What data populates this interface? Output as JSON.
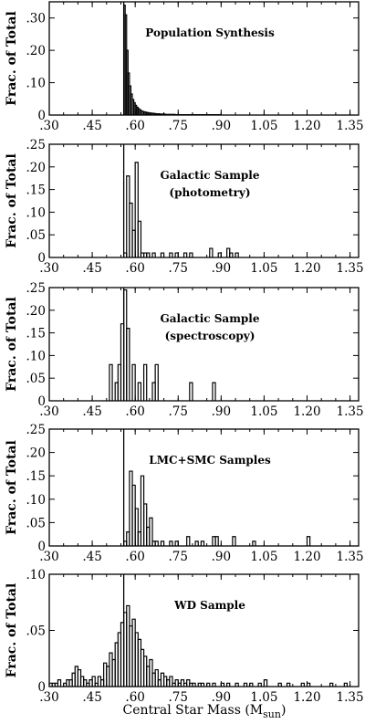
{
  "figure": {
    "xlabel_main": "Central Star Mass (M",
    "xlabel_sub": "sun",
    "xlabel_close": ")"
  },
  "chart_data": [
    {
      "type": "bar",
      "title_lines": [
        "Population Synthesis"
      ],
      "ylabel": "Frac. of Total",
      "xlim": [
        0.3,
        1.38
      ],
      "ylim": [
        0,
        0.35
      ],
      "xticks": [
        ".30",
        ".45",
        ".60",
        ".75",
        ".90",
        "1.05",
        "1.20",
        "1.35"
      ],
      "yticks": [
        {
          "v": 0,
          "l": "0"
        },
        {
          "v": 0.1,
          "l": ".10"
        },
        {
          "v": 0.2,
          "l": ".20"
        },
        {
          "v": 0.3,
          "l": ".30"
        }
      ],
      "marker_x": 0.56,
      "bin_width": 0.005,
      "bins": [
        [
          0.56,
          0.34
        ],
        [
          0.565,
          0.31
        ],
        [
          0.57,
          0.2
        ],
        [
          0.575,
          0.13
        ],
        [
          0.58,
          0.09
        ],
        [
          0.585,
          0.065
        ],
        [
          0.59,
          0.048
        ],
        [
          0.595,
          0.038
        ],
        [
          0.6,
          0.03
        ],
        [
          0.605,
          0.024
        ],
        [
          0.61,
          0.02
        ],
        [
          0.615,
          0.016
        ],
        [
          0.62,
          0.013
        ],
        [
          0.625,
          0.011
        ],
        [
          0.63,
          0.01
        ],
        [
          0.635,
          0.009
        ],
        [
          0.64,
          0.008
        ],
        [
          0.645,
          0.007
        ],
        [
          0.65,
          0.006
        ],
        [
          0.655,
          0.006
        ],
        [
          0.66,
          0.005
        ],
        [
          0.665,
          0.005
        ],
        [
          0.67,
          0.004
        ],
        [
          0.675,
          0.004
        ],
        [
          0.68,
          0.004
        ],
        [
          0.685,
          0.003
        ],
        [
          0.69,
          0.003
        ],
        [
          0.695,
          0.003
        ],
        [
          0.7,
          0.003
        ],
        [
          0.705,
          0.002
        ],
        [
          0.71,
          0.002
        ],
        [
          0.715,
          0.002
        ],
        [
          0.72,
          0.002
        ],
        [
          0.725,
          0.002
        ],
        [
          0.73,
          0.002
        ],
        [
          0.735,
          0.002
        ],
        [
          0.74,
          0.001
        ],
        [
          0.745,
          0.001
        ],
        [
          0.75,
          0.001
        ],
        [
          0.755,
          0.001
        ],
        [
          0.76,
          0.001
        ],
        [
          0.765,
          0.001
        ],
        [
          0.77,
          0.001
        ],
        [
          0.775,
          0.001
        ],
        [
          0.78,
          0.001
        ],
        [
          0.785,
          0.001
        ],
        [
          0.79,
          0.001
        ],
        [
          0.795,
          0.001
        ],
        [
          0.8,
          0.001
        ],
        [
          0.805,
          0.001
        ],
        [
          0.81,
          0.001
        ],
        [
          0.815,
          0.001
        ],
        [
          0.82,
          0.001
        ],
        [
          0.825,
          0.001
        ],
        [
          0.83,
          0.001
        ],
        [
          0.835,
          0.001
        ],
        [
          0.84,
          0.001
        ],
        [
          0.845,
          0.001
        ],
        [
          0.85,
          0.001
        ],
        [
          0.855,
          0.001
        ],
        [
          0.86,
          0.001
        ],
        [
          0.865,
          0.001
        ],
        [
          0.87,
          0.001
        ],
        [
          0.875,
          0.001
        ],
        [
          0.88,
          0.001
        ],
        [
          0.885,
          0.001
        ],
        [
          0.89,
          0.001
        ],
        [
          0.895,
          0.001
        ]
      ]
    },
    {
      "type": "bar",
      "title_lines": [
        "Galactic Sample",
        "(photometry)"
      ],
      "ylabel": "Frac. of Total",
      "xlim": [
        0.3,
        1.38
      ],
      "ylim": [
        0,
        0.25
      ],
      "xticks": [
        ".30",
        ".45",
        ".60",
        ".75",
        ".90",
        "1.05",
        "1.20",
        "1.35"
      ],
      "yticks": [
        {
          "v": 0,
          "l": "0"
        },
        {
          "v": 0.05,
          "l": ".05"
        },
        {
          "v": 0.1,
          "l": ".10"
        },
        {
          "v": 0.15,
          "l": ".15"
        },
        {
          "v": 0.2,
          "l": ".20"
        },
        {
          "v": 0.25,
          "l": ".25"
        }
      ],
      "marker_x": 0.56,
      "bin_width": 0.01,
      "bins": [
        [
          0.56,
          0.01
        ],
        [
          0.57,
          0.18
        ],
        [
          0.58,
          0.12
        ],
        [
          0.59,
          0.06
        ],
        [
          0.6,
          0.21
        ],
        [
          0.61,
          0.08
        ],
        [
          0.62,
          0.01
        ],
        [
          0.63,
          0.01
        ],
        [
          0.64,
          0.01
        ],
        [
          0.66,
          0.01
        ],
        [
          0.69,
          0.01
        ],
        [
          0.72,
          0.01
        ],
        [
          0.74,
          0.01
        ],
        [
          0.77,
          0.01
        ],
        [
          0.79,
          0.01
        ],
        [
          0.86,
          0.02
        ],
        [
          0.89,
          0.01
        ],
        [
          0.92,
          0.02
        ],
        [
          0.93,
          0.01
        ],
        [
          0.95,
          0.01
        ]
      ]
    },
    {
      "type": "bar",
      "title_lines": [
        "Galactic Sample",
        "(spectroscopy)"
      ],
      "ylabel": "Frac. of Total",
      "xlim": [
        0.3,
        1.38
      ],
      "ylim": [
        0,
        0.25
      ],
      "xticks": [
        ".30",
        ".45",
        ".60",
        ".75",
        ".90",
        "1.05",
        "1.20",
        "1.35"
      ],
      "yticks": [
        {
          "v": 0,
          "l": "0"
        },
        {
          "v": 0.05,
          "l": ".05"
        },
        {
          "v": 0.1,
          "l": ".10"
        },
        {
          "v": 0.15,
          "l": ".15"
        },
        {
          "v": 0.2,
          "l": ".20"
        },
        {
          "v": 0.25,
          "l": ".25"
        }
      ],
      "marker_x": 0.56,
      "bin_width": 0.01,
      "bins": [
        [
          0.51,
          0.08
        ],
        [
          0.53,
          0.04
        ],
        [
          0.54,
          0.08
        ],
        [
          0.55,
          0.17
        ],
        [
          0.56,
          0.245
        ],
        [
          0.57,
          0.16
        ],
        [
          0.59,
          0.08
        ],
        [
          0.61,
          0.04
        ],
        [
          0.63,
          0.08
        ],
        [
          0.66,
          0.04
        ],
        [
          0.67,
          0.08
        ],
        [
          0.79,
          0.04
        ],
        [
          0.87,
          0.04
        ]
      ]
    },
    {
      "type": "bar",
      "title_lines": [
        "LMC+SMC Samples"
      ],
      "ylabel": "Frac. of Total",
      "xlim": [
        0.3,
        1.38
      ],
      "ylim": [
        0,
        0.25
      ],
      "xticks": [
        ".30",
        ".45",
        ".60",
        ".75",
        ".90",
        "1.05",
        "1.20",
        "1.35"
      ],
      "yticks": [
        {
          "v": 0,
          "l": "0"
        },
        {
          "v": 0.05,
          "l": ".05"
        },
        {
          "v": 0.1,
          "l": ".10"
        },
        {
          "v": 0.15,
          "l": ".15"
        },
        {
          "v": 0.2,
          "l": ".20"
        },
        {
          "v": 0.25,
          "l": ".25"
        }
      ],
      "marker_x": 0.56,
      "bin_width": 0.01,
      "bins": [
        [
          0.56,
          0.01
        ],
        [
          0.57,
          0.03
        ],
        [
          0.58,
          0.16
        ],
        [
          0.59,
          0.13
        ],
        [
          0.6,
          0.08
        ],
        [
          0.61,
          0.03
        ],
        [
          0.62,
          0.15
        ],
        [
          0.63,
          0.09
        ],
        [
          0.64,
          0.04
        ],
        [
          0.65,
          0.06
        ],
        [
          0.66,
          0.01
        ],
        [
          0.67,
          0.01
        ],
        [
          0.69,
          0.01
        ],
        [
          0.72,
          0.01
        ],
        [
          0.74,
          0.01
        ],
        [
          0.78,
          0.02
        ],
        [
          0.81,
          0.01
        ],
        [
          0.83,
          0.01
        ],
        [
          0.87,
          0.02
        ],
        [
          0.88,
          0.02
        ],
        [
          0.94,
          0.02
        ],
        [
          1.01,
          0.01
        ],
        [
          1.2,
          0.02
        ]
      ]
    },
    {
      "type": "bar",
      "title_lines": [
        "WD Sample"
      ],
      "ylabel": "Frac. of Total",
      "xlim": [
        0.3,
        1.38
      ],
      "ylim": [
        0,
        0.1
      ],
      "xticks": [
        ".30",
        ".45",
        ".60",
        ".75",
        ".90",
        "1.05",
        "1.20",
        "1.35"
      ],
      "yticks": [
        {
          "v": 0,
          "l": "0"
        },
        {
          "v": 0.05,
          "l": ".05"
        },
        {
          "v": 0.1,
          "l": ".10"
        }
      ],
      "marker_x": 0.56,
      "bin_width": 0.01,
      "bins": [
        [
          0.3,
          0.003
        ],
        [
          0.31,
          0.003
        ],
        [
          0.32,
          0.003
        ],
        [
          0.33,
          0.006
        ],
        [
          0.35,
          0.003
        ],
        [
          0.36,
          0.006
        ],
        [
          0.37,
          0.006
        ],
        [
          0.38,
          0.012
        ],
        [
          0.39,
          0.018
        ],
        [
          0.4,
          0.015
        ],
        [
          0.41,
          0.009
        ],
        [
          0.42,
          0.006
        ],
        [
          0.43,
          0.003
        ],
        [
          0.44,
          0.006
        ],
        [
          0.45,
          0.009
        ],
        [
          0.46,
          0.003
        ],
        [
          0.47,
          0.009
        ],
        [
          0.48,
          0.006
        ],
        [
          0.49,
          0.021
        ],
        [
          0.5,
          0.018
        ],
        [
          0.51,
          0.03
        ],
        [
          0.52,
          0.024
        ],
        [
          0.53,
          0.039
        ],
        [
          0.54,
          0.048
        ],
        [
          0.55,
          0.057
        ],
        [
          0.56,
          0.066
        ],
        [
          0.57,
          0.072
        ],
        [
          0.58,
          0.054
        ],
        [
          0.59,
          0.06
        ],
        [
          0.6,
          0.048
        ],
        [
          0.61,
          0.042
        ],
        [
          0.62,
          0.033
        ],
        [
          0.63,
          0.027
        ],
        [
          0.64,
          0.018
        ],
        [
          0.65,
          0.024
        ],
        [
          0.66,
          0.012
        ],
        [
          0.67,
          0.015
        ],
        [
          0.68,
          0.006
        ],
        [
          0.69,
          0.012
        ],
        [
          0.7,
          0.009
        ],
        [
          0.71,
          0.006
        ],
        [
          0.72,
          0.009
        ],
        [
          0.73,
          0.003
        ],
        [
          0.74,
          0.006
        ],
        [
          0.75,
          0.003
        ],
        [
          0.76,
          0.006
        ],
        [
          0.77,
          0.003
        ],
        [
          0.78,
          0.006
        ],
        [
          0.79,
          0.003
        ],
        [
          0.8,
          0.003
        ],
        [
          0.82,
          0.003
        ],
        [
          0.83,
          0.003
        ],
        [
          0.85,
          0.003
        ],
        [
          0.87,
          0.003
        ],
        [
          0.9,
          0.003
        ],
        [
          0.92,
          0.003
        ],
        [
          0.95,
          0.003
        ],
        [
          0.98,
          0.003
        ],
        [
          1.0,
          0.003
        ],
        [
          1.03,
          0.003
        ],
        [
          1.05,
          0.006
        ],
        [
          1.1,
          0.003
        ],
        [
          1.13,
          0.003
        ],
        [
          1.18,
          0.003
        ],
        [
          1.2,
          0.003
        ],
        [
          1.28,
          0.003
        ],
        [
          1.33,
          0.003
        ]
      ]
    }
  ]
}
